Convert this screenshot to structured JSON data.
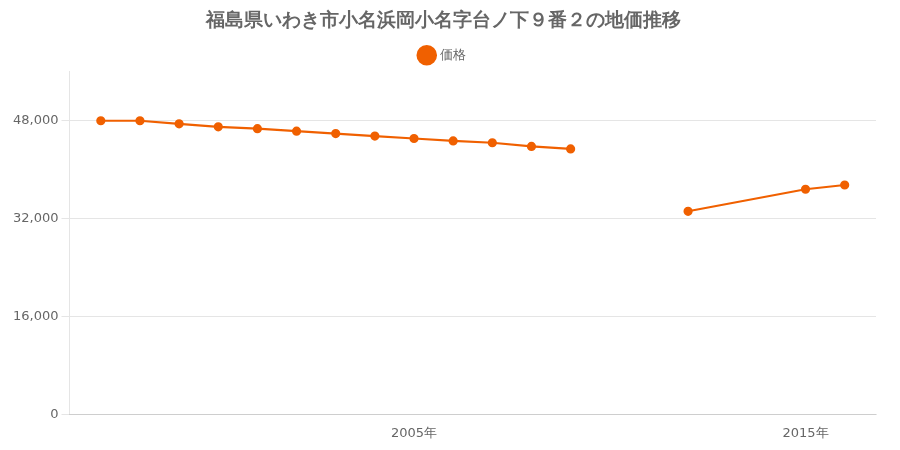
{
  "chart_data": {
    "type": "line",
    "title": "福島県いわき市小名浜岡小名字台ノ下９番２の地価推移",
    "x": [
      1997,
      1998,
      1999,
      2000,
      2001,
      2002,
      2003,
      2004,
      2005,
      2006,
      2007,
      2008,
      2009,
      null,
      2012,
      2015,
      2016
    ],
    "series": [
      {
        "name": "価格",
        "color": "#f06000",
        "marker": "circle",
        "values": [
          48000,
          48000,
          47500,
          47000,
          46700,
          46300,
          45900,
          45500,
          45100,
          44700,
          44400,
          43800,
          43400,
          null,
          33200,
          36800,
          37500
        ]
      }
    ],
    "xlim": [
      1996.2,
      2016.8
    ],
    "xticks": [
      {
        "value": 2005,
        "label": "2005年"
      },
      {
        "value": 2015,
        "label": "2015年"
      }
    ],
    "ylim": [
      0,
      56000
    ],
    "yticks": [
      0,
      {
        "value": 16000,
        "label": "16,000"
      },
      {
        "value": 32000,
        "label": "32,000"
      },
      {
        "value": 48000,
        "label": "48,000"
      }
    ],
    "grid": true,
    "legend": "top"
  }
}
